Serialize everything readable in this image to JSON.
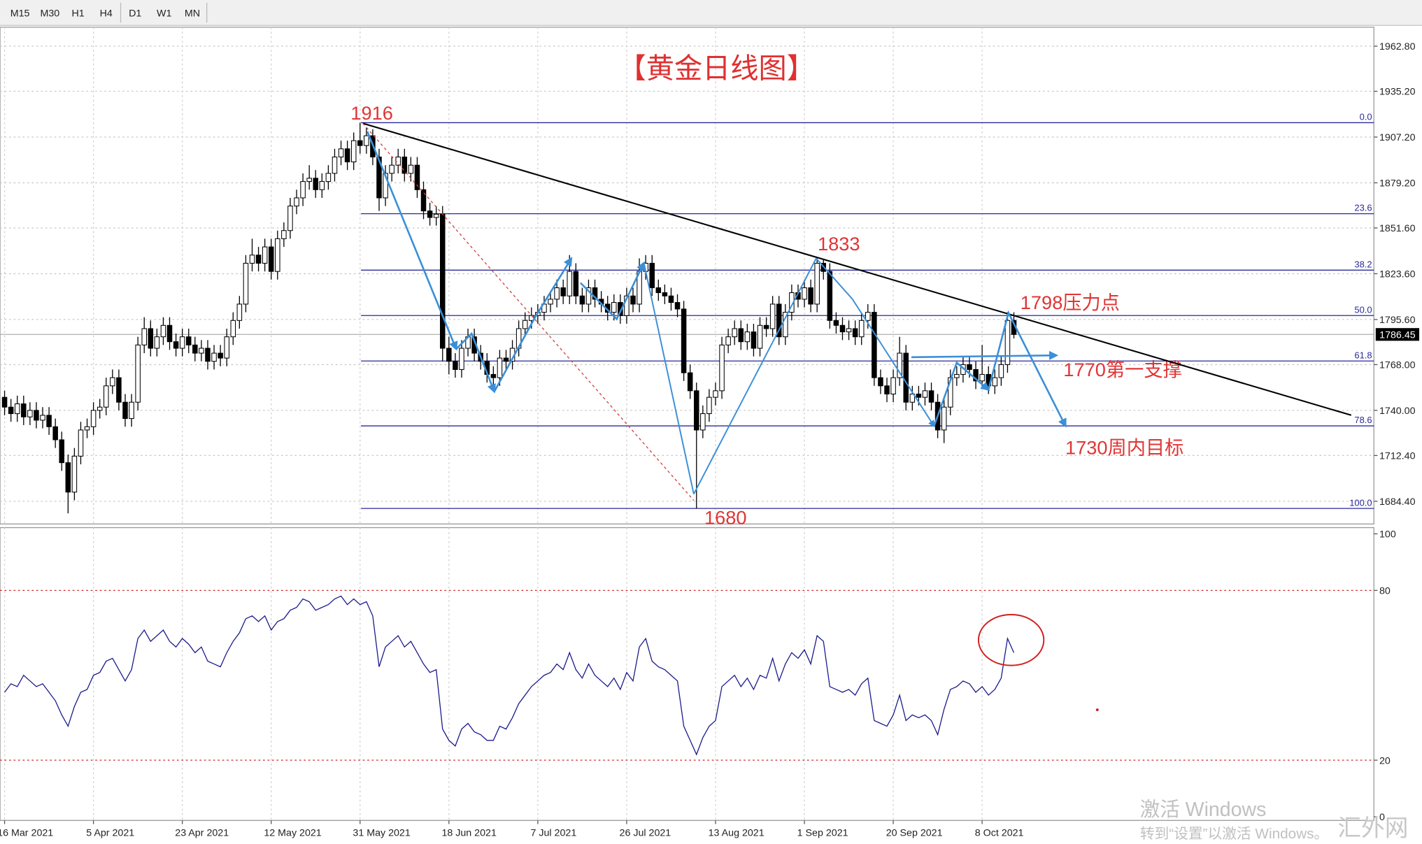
{
  "toolbar": [
    "M15",
    "M30",
    "H1",
    "H4",
    "D1",
    "W1",
    "MN"
  ],
  "watermark": {
    "line1": "激活 Windows",
    "line2": "转到“设置”以激活 Windows。",
    "logo": "汇外网"
  },
  "chart_data": [
    {
      "type": "candlestick",
      "title": "【黄金日线图】",
      "categories": [
        "16 Mar 2021",
        null,
        null,
        null,
        null,
        null,
        null,
        null,
        null,
        null,
        null,
        null,
        null,
        null,
        "5 Apr 2021",
        null,
        null,
        null,
        null,
        null,
        null,
        null,
        null,
        null,
        null,
        null,
        null,
        null,
        "23 Apr 2021",
        null,
        null,
        null,
        null,
        null,
        null,
        null,
        null,
        null,
        null,
        null,
        null,
        null,
        "12 May 2021",
        null,
        null,
        null,
        null,
        null,
        null,
        null,
        null,
        null,
        null,
        null,
        null,
        null,
        "31 May 2021",
        null,
        null,
        null,
        null,
        null,
        null,
        null,
        null,
        null,
        null,
        null,
        null,
        null,
        "18 Jun 2021",
        null,
        null,
        null,
        null,
        null,
        null,
        null,
        null,
        null,
        null,
        null,
        null,
        null,
        "7 Jul 2021",
        null,
        null,
        null,
        null,
        null,
        null,
        null,
        null,
        null,
        null,
        null,
        null,
        null,
        "26 Jul 2021",
        null,
        null,
        null,
        null,
        null,
        null,
        null,
        null,
        null,
        null,
        null,
        null,
        null,
        "13 Aug 2021",
        null,
        null,
        null,
        null,
        null,
        null,
        null,
        null,
        null,
        null,
        null,
        null,
        null,
        "1 Sep 2021",
        null,
        null,
        null,
        null,
        null,
        null,
        null,
        null,
        null,
        null,
        null,
        null,
        null,
        "20 Sep 2021",
        null,
        null,
        null,
        null,
        null,
        null,
        null,
        null,
        null,
        null,
        null,
        null,
        null,
        "8 Oct 2021",
        null,
        null,
        null,
        null,
        null
      ],
      "ohlc": [
        [
          1748,
          1752,
          1737,
          1742
        ],
        [
          1742,
          1747,
          1733,
          1738
        ],
        [
          1738,
          1749,
          1733,
          1744
        ],
        [
          1744,
          1749,
          1731,
          1736
        ],
        [
          1736,
          1745,
          1731,
          1740
        ],
        [
          1740,
          1745,
          1729,
          1734
        ],
        [
          1734,
          1742,
          1729,
          1737
        ],
        [
          1737,
          1742,
          1725,
          1730
        ],
        [
          1730,
          1735,
          1717,
          1722
        ],
        [
          1722,
          1727,
          1703,
          1708
        ],
        [
          1708,
          1713,
          1677,
          1690
        ],
        [
          1690,
          1717,
          1685,
          1712
        ],
        [
          1712,
          1733,
          1707,
          1728
        ],
        [
          1728,
          1735,
          1723,
          1730
        ],
        [
          1730,
          1745,
          1725,
          1740
        ],
        [
          1740,
          1747,
          1735,
          1742
        ],
        [
          1742,
          1760,
          1737,
          1755
        ],
        [
          1755,
          1765,
          1750,
          1760
        ],
        [
          1760,
          1765,
          1740,
          1745
        ],
        [
          1745,
          1750,
          1730,
          1735
        ],
        [
          1735,
          1750,
          1730,
          1745
        ],
        [
          1745,
          1785,
          1740,
          1780
        ],
        [
          1780,
          1797,
          1775,
          1790
        ],
        [
          1790,
          1795,
          1773,
          1778
        ],
        [
          1778,
          1790,
          1773,
          1785
        ],
        [
          1785,
          1797,
          1780,
          1792
        ],
        [
          1792,
          1797,
          1777,
          1782
        ],
        [
          1782,
          1787,
          1773,
          1778
        ],
        [
          1778,
          1790,
          1773,
          1785
        ],
        [
          1785,
          1790,
          1775,
          1780
        ],
        [
          1780,
          1785,
          1770,
          1775
        ],
        [
          1775,
          1783,
          1770,
          1778
        ],
        [
          1778,
          1783,
          1765,
          1770
        ],
        [
          1770,
          1780,
          1765,
          1775
        ],
        [
          1775,
          1780,
          1767,
          1772
        ],
        [
          1772,
          1790,
          1767,
          1785
        ],
        [
          1785,
          1800,
          1780,
          1795
        ],
        [
          1795,
          1810,
          1790,
          1805
        ],
        [
          1805,
          1835,
          1800,
          1830
        ],
        [
          1830,
          1845,
          1825,
          1835
        ],
        [
          1835,
          1840,
          1825,
          1830
        ],
        [
          1830,
          1845,
          1825,
          1840
        ],
        [
          1840,
          1845,
          1820,
          1825
        ],
        [
          1825,
          1850,
          1820,
          1845
        ],
        [
          1845,
          1855,
          1840,
          1850
        ],
        [
          1850,
          1870,
          1845,
          1865
        ],
        [
          1865,
          1875,
          1860,
          1870
        ],
        [
          1870,
          1885,
          1865,
          1880
        ],
        [
          1880,
          1890,
          1875,
          1882
        ],
        [
          1882,
          1887,
          1870,
          1875
        ],
        [
          1875,
          1885,
          1870,
          1880
        ],
        [
          1880,
          1890,
          1875,
          1885
        ],
        [
          1885,
          1900,
          1880,
          1895
        ],
        [
          1895,
          1905,
          1890,
          1900
        ],
        [
          1900,
          1905,
          1887,
          1892
        ],
        [
          1892,
          1910,
          1887,
          1905
        ],
        [
          1905,
          1916,
          1897,
          1902
        ],
        [
          1902,
          1913,
          1897,
          1908
        ],
        [
          1908,
          1912,
          1890,
          1895
        ],
        [
          1895,
          1900,
          1862,
          1870
        ],
        [
          1870,
          1890,
          1865,
          1885
        ],
        [
          1885,
          1895,
          1880,
          1890
        ],
        [
          1890,
          1900,
          1885,
          1895
        ],
        [
          1895,
          1900,
          1880,
          1885
        ],
        [
          1885,
          1895,
          1880,
          1890
        ],
        [
          1890,
          1895,
          1870,
          1875
        ],
        [
          1875,
          1880,
          1857,
          1862
        ],
        [
          1862,
          1867,
          1853,
          1858
        ],
        [
          1858,
          1865,
          1853,
          1860
        ],
        [
          1860,
          1865,
          1770,
          1778
        ],
        [
          1778,
          1785,
          1762,
          1770
        ],
        [
          1770,
          1775,
          1760,
          1765
        ],
        [
          1765,
          1783,
          1760,
          1778
        ],
        [
          1778,
          1790,
          1773,
          1785
        ],
        [
          1785,
          1790,
          1770,
          1775
        ],
        [
          1775,
          1780,
          1765,
          1770
        ],
        [
          1770,
          1775,
          1757,
          1762
        ],
        [
          1762,
          1767,
          1752,
          1760
        ],
        [
          1760,
          1777,
          1755,
          1772
        ],
        [
          1772,
          1777,
          1765,
          1770
        ],
        [
          1770,
          1783,
          1765,
          1778
        ],
        [
          1778,
          1795,
          1773,
          1790
        ],
        [
          1790,
          1800,
          1785,
          1795
        ],
        [
          1795,
          1803,
          1790,
          1798
        ],
        [
          1798,
          1805,
          1793,
          1800
        ],
        [
          1800,
          1810,
          1795,
          1805
        ],
        [
          1805,
          1813,
          1800,
          1808
        ],
        [
          1808,
          1820,
          1803,
          1815
        ],
        [
          1815,
          1820,
          1805,
          1810
        ],
        [
          1810,
          1835,
          1805,
          1825
        ],
        [
          1825,
          1830,
          1805,
          1810
        ],
        [
          1810,
          1815,
          1800,
          1805
        ],
        [
          1805,
          1820,
          1800,
          1815
        ],
        [
          1815,
          1820,
          1803,
          1808
        ],
        [
          1808,
          1813,
          1800,
          1805
        ],
        [
          1805,
          1810,
          1795,
          1800
        ],
        [
          1800,
          1811,
          1795,
          1806
        ],
        [
          1806,
          1811,
          1793,
          1798
        ],
        [
          1798,
          1815,
          1793,
          1810
        ],
        [
          1810,
          1815,
          1800,
          1805
        ],
        [
          1805,
          1833,
          1800,
          1825
        ],
        [
          1825,
          1835,
          1820,
          1830
        ],
        [
          1830,
          1835,
          1810,
          1815
        ],
        [
          1815,
          1820,
          1807,
          1812
        ],
        [
          1812,
          1817,
          1805,
          1810
        ],
        [
          1810,
          1815,
          1801,
          1806
        ],
        [
          1806,
          1811,
          1797,
          1802
        ],
        [
          1802,
          1807,
          1758,
          1763
        ],
        [
          1763,
          1768,
          1747,
          1752
        ],
        [
          1752,
          1757,
          1680,
          1728
        ],
        [
          1728,
          1743,
          1723,
          1738
        ],
        [
          1738,
          1753,
          1733,
          1748
        ],
        [
          1748,
          1757,
          1743,
          1752
        ],
        [
          1752,
          1785,
          1747,
          1780
        ],
        [
          1780,
          1790,
          1775,
          1785
        ],
        [
          1785,
          1795,
          1780,
          1790
        ],
        [
          1790,
          1795,
          1777,
          1782
        ],
        [
          1782,
          1793,
          1777,
          1788
        ],
        [
          1788,
          1793,
          1773,
          1778
        ],
        [
          1778,
          1797,
          1773,
          1792
        ],
        [
          1792,
          1797,
          1785,
          1790
        ],
        [
          1790,
          1810,
          1785,
          1805
        ],
        [
          1805,
          1810,
          1780,
          1785
        ],
        [
          1785,
          1805,
          1780,
          1800
        ],
        [
          1800,
          1817,
          1795,
          1812
        ],
        [
          1812,
          1817,
          1803,
          1808
        ],
        [
          1808,
          1820,
          1803,
          1815
        ],
        [
          1815,
          1820,
          1800,
          1805
        ],
        [
          1805,
          1833,
          1800,
          1830
        ],
        [
          1830,
          1832,
          1820,
          1825
        ],
        [
          1825,
          1830,
          1790,
          1795
        ],
        [
          1795,
          1800,
          1787,
          1792
        ],
        [
          1792,
          1797,
          1783,
          1788
        ],
        [
          1788,
          1795,
          1783,
          1790
        ],
        [
          1790,
          1795,
          1780,
          1785
        ],
        [
          1785,
          1800,
          1780,
          1795
        ],
        [
          1795,
          1805,
          1790,
          1800
        ],
        [
          1800,
          1805,
          1755,
          1760
        ],
        [
          1760,
          1765,
          1750,
          1755
        ],
        [
          1755,
          1760,
          1745,
          1750
        ],
        [
          1750,
          1765,
          1745,
          1760
        ],
        [
          1760,
          1785,
          1755,
          1775
        ],
        [
          1775,
          1780,
          1740,
          1745
        ],
        [
          1745,
          1755,
          1740,
          1750
        ],
        [
          1750,
          1755,
          1743,
          1748
        ],
        [
          1748,
          1757,
          1743,
          1752
        ],
        [
          1752,
          1757,
          1740,
          1745
        ],
        [
          1745,
          1750,
          1723,
          1728
        ],
        [
          1728,
          1747,
          1720,
          1742
        ],
        [
          1742,
          1765,
          1737,
          1760
        ],
        [
          1760,
          1767,
          1755,
          1762
        ],
        [
          1762,
          1773,
          1757,
          1768
        ],
        [
          1768,
          1773,
          1760,
          1765
        ],
        [
          1765,
          1770,
          1753,
          1758
        ],
        [
          1758,
          1780,
          1753,
          1762
        ],
        [
          1762,
          1767,
          1750,
          1755
        ],
        [
          1755,
          1765,
          1750,
          1760
        ],
        [
          1760,
          1773,
          1755,
          1768
        ],
        [
          1768,
          1800,
          1763,
          1795
        ],
        [
          1795,
          1800,
          1784,
          1786.45
        ]
      ],
      "ylim": [
        1670.5,
        1974.4
      ],
      "yticks": [
        {
          "value": 1962.8,
          "label": "1962.80"
        },
        {
          "value": 1935.2,
          "label": "1935.20"
        },
        {
          "value": 1907.2,
          "label": "1907.20"
        },
        {
          "value": 1879.2,
          "label": "1879.20"
        },
        {
          "value": 1851.6,
          "label": "1851.60"
        },
        {
          "value": 1823.6,
          "label": "1823.60"
        },
        {
          "value": 1795.6,
          "label": "1795.60"
        },
        {
          "value": 1768,
          "label": "1768.00"
        },
        {
          "value": 1740,
          "label": "1740.00"
        },
        {
          "value": 1712.4,
          "label": "1712.40"
        },
        {
          "value": 1684.4,
          "label": "1684.40"
        }
      ],
      "grid": true,
      "last_price": 1786.45,
      "fib_levels": [
        {
          "value": 1916,
          "label": "0.0"
        },
        {
          "value": 1860.3,
          "label": "23.6"
        },
        {
          "value": 1825.8,
          "label": "38.2"
        },
        {
          "value": 1798,
          "label": "50.0"
        },
        {
          "value": 1770.2,
          "label": "61.8"
        },
        {
          "value": 1730.5,
          "label": "78.6"
        },
        {
          "value": 1680,
          "label": "100.0"
        }
      ],
      "annotations": [
        "1916",
        "1833",
        "1798压力点",
        "1770第一支撑",
        "1730周内目标",
        "1680"
      ]
    },
    {
      "type": "line",
      "color": "#1a1a8c",
      "values": [
        44,
        47,
        46,
        50,
        48,
        46,
        47,
        44,
        41,
        36,
        32,
        39,
        44,
        45,
        50,
        51,
        55,
        56,
        52,
        48,
        52,
        63,
        66,
        62,
        64,
        66,
        62,
        60,
        63,
        61,
        58,
        60,
        55,
        54,
        53,
        58,
        62,
        65,
        70,
        71,
        69,
        71,
        66,
        69,
        70,
        73,
        74,
        77,
        76,
        73,
        74,
        75,
        77,
        78,
        75,
        77,
        75,
        76,
        71,
        53,
        60,
        62,
        64,
        60,
        62,
        58,
        54,
        51,
        52,
        31,
        27,
        25,
        31,
        33,
        30,
        29,
        27,
        27,
        32,
        31,
        35,
        40,
        43,
        46,
        48,
        50,
        51,
        54,
        52,
        58,
        52,
        49,
        54,
        50,
        48,
        46,
        49,
        45,
        51,
        48,
        60,
        63,
        55,
        53,
        52,
        50,
        48,
        32,
        27,
        22,
        28,
        32,
        34,
        46,
        48,
        50,
        46,
        49,
        45,
        50,
        49,
        56,
        48,
        54,
        58,
        56,
        59,
        54,
        64,
        62,
        46,
        45,
        44,
        45,
        43,
        47,
        49,
        34,
        33,
        32,
        36,
        43,
        34,
        36,
        35,
        36,
        34,
        29,
        38,
        45,
        46,
        48,
        47,
        44,
        46,
        43,
        45,
        49,
        63,
        58
      ],
      "ylim": [
        -1.3,
        102.2
      ],
      "yticks": [
        100,
        80,
        20,
        0
      ],
      "levels": [
        80,
        20
      ],
      "level_color": "#cc2222"
    }
  ]
}
